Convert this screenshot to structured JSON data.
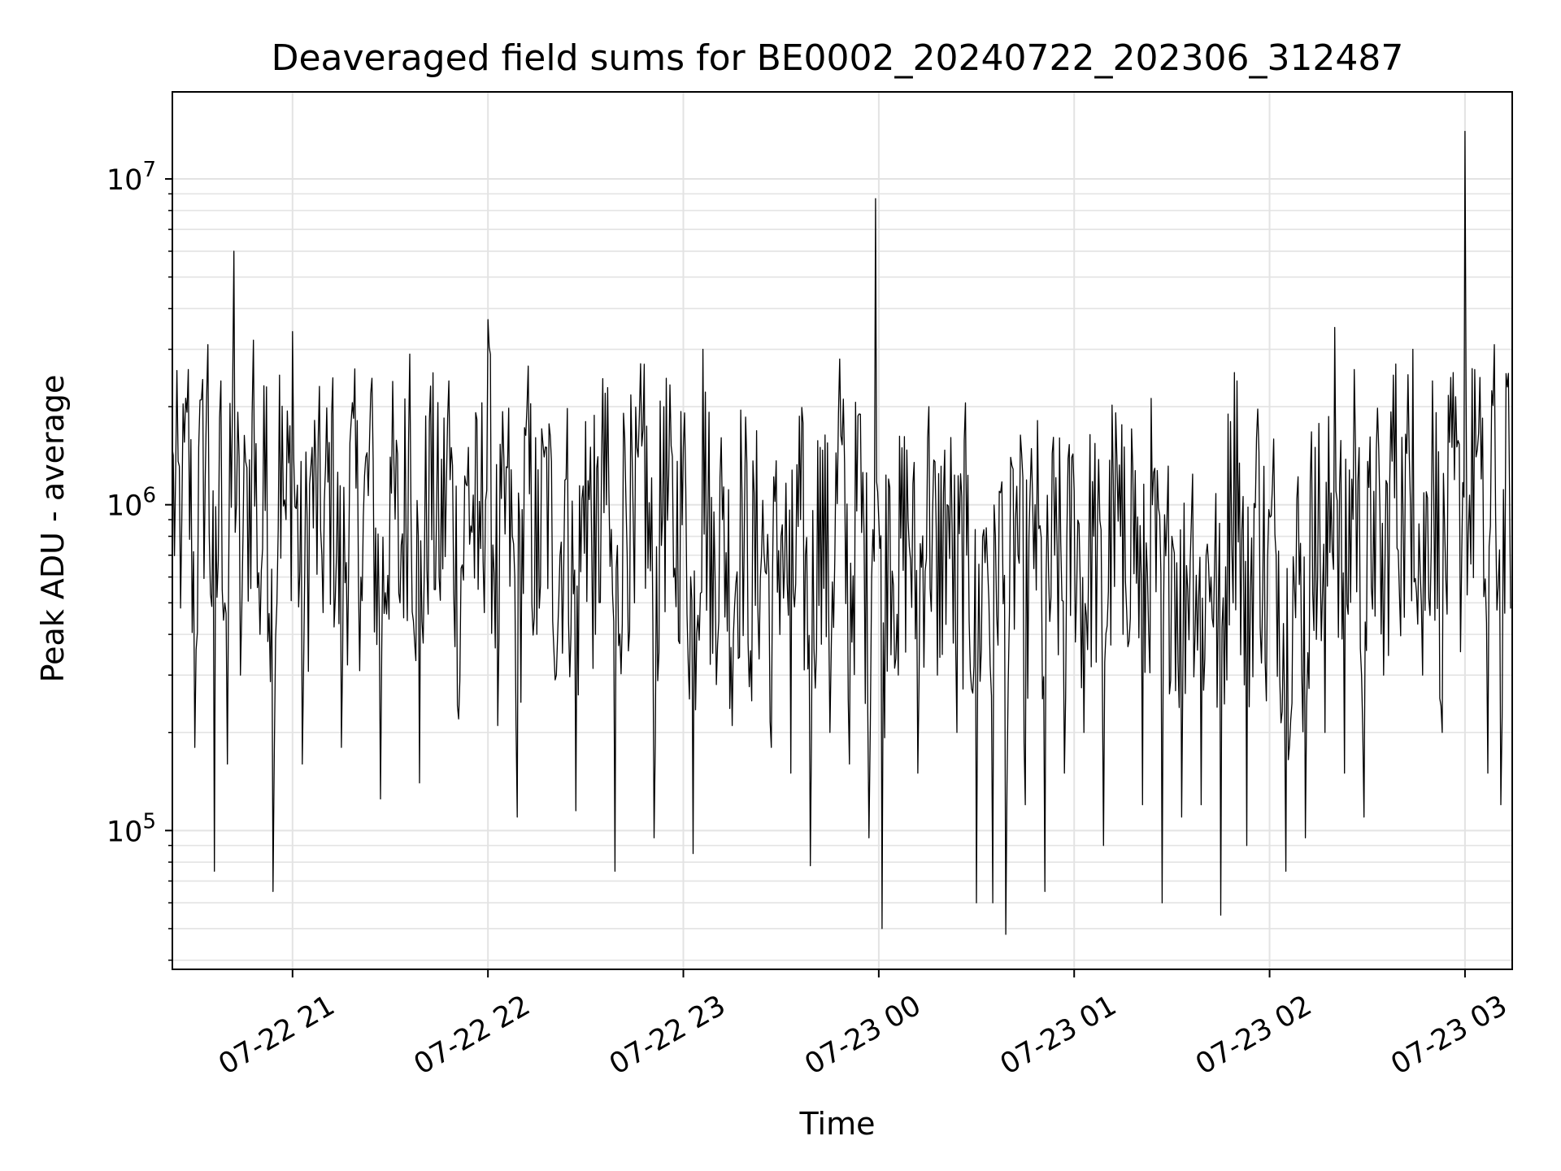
{
  "chart_data": {
    "type": "line",
    "title": "Deaveraged field sums for BE0002_20240722_202306_312487",
    "xlabel": "Time",
    "ylabel": "Peak ADU - average",
    "yscale": "log",
    "ylim": [
      37500,
      18500000
    ],
    "xlim": [
      "2024-07-22 20:23:06",
      "2024-07-23 03:14:30"
    ],
    "x_ticks": [
      {
        "value": "2024-07-22 21:00",
        "label": "07-22 21"
      },
      {
        "value": "2024-07-22 22:00",
        "label": "07-22 22"
      },
      {
        "value": "2024-07-22 23:00",
        "label": "07-22 23"
      },
      {
        "value": "2024-07-23 00:00",
        "label": "07-23 00"
      },
      {
        "value": "2024-07-23 01:00",
        "label": "07-23 01"
      },
      {
        "value": "2024-07-23 02:00",
        "label": "07-23 02"
      },
      {
        "value": "2024-07-23 03:00",
        "label": "07-23 03"
      }
    ],
    "y_ticks": [
      {
        "value": 100000,
        "base": "10",
        "exp": "5"
      },
      {
        "value": 1000000,
        "base": "10",
        "exp": "6"
      },
      {
        "value": 10000000,
        "base": "10",
        "exp": "7"
      }
    ],
    "grid": true,
    "line_color": "#000000",
    "series": [
      {
        "points": [
          [
            "2024-07-22 20:23",
            1500000
          ],
          [
            "2024-07-22 20:26",
            900000
          ],
          [
            "2024-07-22 20:28",
            2600000
          ],
          [
            "2024-07-22 20:30",
            180000
          ],
          [
            "2024-07-22 20:32",
            2100000
          ],
          [
            "2024-07-22 20:34",
            3100000
          ],
          [
            "2024-07-22 20:36",
            75000
          ],
          [
            "2024-07-22 20:38",
            2400000
          ],
          [
            "2024-07-22 20:40",
            160000
          ],
          [
            "2024-07-22 20:42",
            6000000
          ],
          [
            "2024-07-22 20:44",
            300000
          ],
          [
            "2024-07-22 20:46",
            1300000
          ],
          [
            "2024-07-22 20:48",
            3200000
          ],
          [
            "2024-07-22 20:50",
            400000
          ],
          [
            "2024-07-22 20:52",
            2300000
          ],
          [
            "2024-07-22 20:54",
            65000
          ],
          [
            "2024-07-22 20:56",
            2500000
          ],
          [
            "2024-07-22 20:58",
            900000
          ],
          [
            "2024-07-22 21:00",
            3400000
          ],
          [
            "2024-07-22 21:03",
            160000
          ],
          [
            "2024-07-22 21:06",
            1500000
          ],
          [
            "2024-07-22 21:09",
            700000
          ],
          [
            "2024-07-22 21:12",
            1900000
          ],
          [
            "2024-07-22 21:15",
            180000
          ],
          [
            "2024-07-22 21:18",
            1800000
          ],
          [
            "2024-07-22 21:21",
            600000
          ],
          [
            "2024-07-22 21:24",
            2200000
          ],
          [
            "2024-07-22 21:27",
            125000
          ],
          [
            "2024-07-22 21:30",
            1400000
          ],
          [
            "2024-07-22 21:33",
            500000
          ],
          [
            "2024-07-22 21:36",
            2900000
          ],
          [
            "2024-07-22 21:39",
            140000
          ],
          [
            "2024-07-22 21:42",
            1800000
          ],
          [
            "2024-07-22 21:45",
            600000
          ],
          [
            "2024-07-22 21:48",
            2400000
          ],
          [
            "2024-07-22 21:51",
            220000
          ],
          [
            "2024-07-22 21:54",
            1500000
          ],
          [
            "2024-07-22 21:57",
            550000
          ],
          [
            "2024-07-22 22:00",
            3700000
          ],
          [
            "2024-07-22 22:03",
            210000
          ],
          [
            "2024-07-22 22:06",
            1300000
          ],
          [
            "2024-07-22 22:09",
            110000
          ],
          [
            "2024-07-22 22:12",
            2000000
          ],
          [
            "2024-07-22 22:15",
            400000
          ],
          [
            "2024-07-22 22:18",
            1500000
          ],
          [
            "2024-07-22 22:21",
            300000
          ],
          [
            "2024-07-22 22:24",
            1200000
          ],
          [
            "2024-07-22 22:27",
            115000
          ],
          [
            "2024-07-22 22:30",
            1800000
          ],
          [
            "2024-07-22 22:33",
            400000
          ],
          [
            "2024-07-22 22:36",
            2200000
          ],
          [
            "2024-07-22 22:39",
            75000
          ],
          [
            "2024-07-22 22:42",
            1600000
          ],
          [
            "2024-07-22 22:45",
            500000
          ],
          [
            "2024-07-22 22:48",
            2700000
          ],
          [
            "2024-07-22 22:51",
            95000
          ],
          [
            "2024-07-22 22:54",
            2000000
          ],
          [
            "2024-07-22 22:57",
            600000
          ],
          [
            "2024-07-22 23:00",
            1500000
          ],
          [
            "2024-07-22 23:03",
            85000
          ],
          [
            "2024-07-22 23:06",
            3000000
          ],
          [
            "2024-07-22 23:09",
            350000
          ],
          [
            "2024-07-22 23:12",
            900000
          ],
          [
            "2024-07-22 23:15",
            210000
          ],
          [
            "2024-07-22 23:18",
            1100000
          ],
          [
            "2024-07-22 23:21",
            250000
          ],
          [
            "2024-07-22 23:24",
            700000
          ],
          [
            "2024-07-22 23:27",
            180000
          ],
          [
            "2024-07-22 23:30",
            800000
          ],
          [
            "2024-07-22 23:33",
            150000
          ],
          [
            "2024-07-22 23:36",
            900000
          ],
          [
            "2024-07-22 23:39",
            78000
          ],
          [
            "2024-07-22 23:42",
            1500000
          ],
          [
            "2024-07-22 23:45",
            200000
          ],
          [
            "2024-07-22 23:48",
            2800000
          ],
          [
            "2024-07-22 23:51",
            160000
          ],
          [
            "2024-07-22 23:54",
            1900000
          ],
          [
            "2024-07-22 23:57",
            95000
          ],
          [
            "2024-07-22 23:59",
            8700000
          ],
          [
            "2024-07-23 00:00",
            900000
          ],
          [
            "2024-07-23 00:01",
            50000
          ],
          [
            "2024-07-23 00:03",
            1200000
          ],
          [
            "2024-07-23 00:06",
            300000
          ],
          [
            "2024-07-23 00:09",
            900000
          ],
          [
            "2024-07-23 00:12",
            150000
          ],
          [
            "2024-07-23 00:15",
            1600000
          ],
          [
            "2024-07-23 00:18",
            300000
          ],
          [
            "2024-07-23 00:21",
            1000000
          ],
          [
            "2024-07-23 00:24",
            200000
          ],
          [
            "2024-07-23 00:27",
            700000
          ],
          [
            "2024-07-23 00:30",
            60000
          ],
          [
            "2024-07-23 00:33",
            850000
          ],
          [
            "2024-07-23 00:35",
            60000
          ],
          [
            "2024-07-23 00:37",
            1100000
          ],
          [
            "2024-07-23 00:39",
            48000
          ],
          [
            "2024-07-23 00:42",
            900000
          ],
          [
            "2024-07-23 00:45",
            120000
          ],
          [
            "2024-07-23 00:48",
            1000000
          ],
          [
            "2024-07-23 00:51",
            65000
          ],
          [
            "2024-07-23 00:54",
            700000
          ],
          [
            "2024-07-23 00:57",
            150000
          ],
          [
            "2024-07-23 01:00",
            1100000
          ],
          [
            "2024-07-23 01:03",
            200000
          ],
          [
            "2024-07-23 01:06",
            800000
          ],
          [
            "2024-07-23 01:09",
            90000
          ],
          [
            "2024-07-23 01:12",
            1200000
          ],
          [
            "2024-07-23 01:15",
            400000
          ],
          [
            "2024-07-23 01:18",
            1300000
          ],
          [
            "2024-07-23 01:21",
            120000
          ],
          [
            "2024-07-23 01:24",
            1000000
          ],
          [
            "2024-07-23 01:27",
            60000
          ],
          [
            "2024-07-23 01:30",
            800000
          ],
          [
            "2024-07-23 01:33",
            110000
          ],
          [
            "2024-07-23 01:36",
            900000
          ],
          [
            "2024-07-23 01:39",
            120000
          ],
          [
            "2024-07-23 01:42",
            600000
          ],
          [
            "2024-07-23 01:45",
            55000
          ],
          [
            "2024-07-23 01:48",
            1800000
          ],
          [
            "2024-07-23 01:50",
            2400000
          ],
          [
            "2024-07-23 01:53",
            90000
          ],
          [
            "2024-07-23 01:56",
            1600000
          ],
          [
            "2024-07-23 01:59",
            250000
          ],
          [
            "2024-07-23 02:02",
            700000
          ],
          [
            "2024-07-23 02:05",
            75000
          ],
          [
            "2024-07-23 02:08",
            450000
          ],
          [
            "2024-07-23 02:11",
            95000
          ],
          [
            "2024-07-23 02:14",
            1500000
          ],
          [
            "2024-07-23 02:17",
            200000
          ],
          [
            "2024-07-23 02:20",
            3500000
          ],
          [
            "2024-07-23 02:23",
            150000
          ],
          [
            "2024-07-23 02:26",
            2600000
          ],
          [
            "2024-07-23 02:29",
            110000
          ],
          [
            "2024-07-23 02:32",
            1100000
          ],
          [
            "2024-07-23 02:35",
            300000
          ],
          [
            "2024-07-23 02:38",
            2500000
          ],
          [
            "2024-07-23 02:41",
            900000
          ],
          [
            "2024-07-23 02:44",
            3000000
          ],
          [
            "2024-07-23 02:47",
            300000
          ],
          [
            "2024-07-23 02:50",
            2400000
          ],
          [
            "2024-07-23 02:53",
            200000
          ],
          [
            "2024-07-23 02:56",
            1500000
          ],
          [
            "2024-07-23 02:59",
            700000
          ],
          [
            "2024-07-23 03:00",
            14000000
          ],
          [
            "2024-07-23 03:01",
            800000
          ],
          [
            "2024-07-23 03:03",
            2600000
          ],
          [
            "2024-07-23 03:05",
            1200000
          ],
          [
            "2024-07-23 03:07",
            150000
          ],
          [
            "2024-07-23 03:09",
            3100000
          ],
          [
            "2024-07-23 03:11",
            120000
          ],
          [
            "2024-07-23 03:13",
            2300000
          ],
          [
            "2024-07-23 03:14",
            480000
          ]
        ]
      }
    ]
  }
}
